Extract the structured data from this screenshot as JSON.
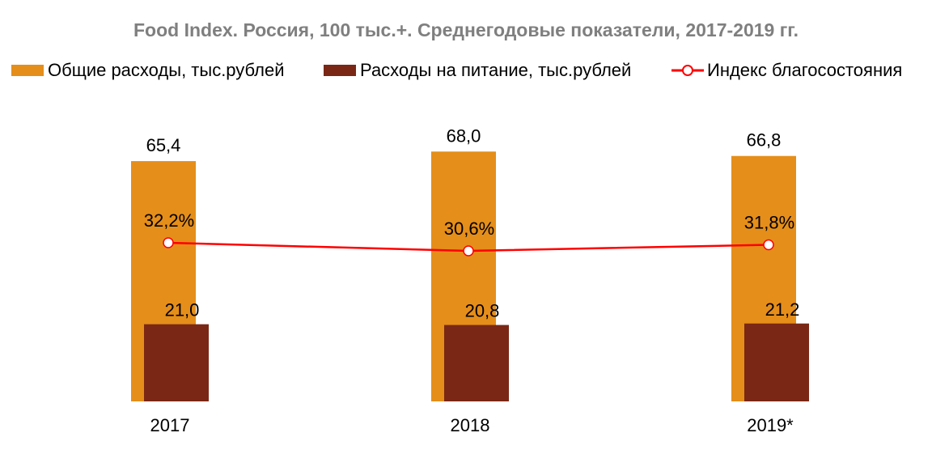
{
  "colors": {
    "total": "#e58e1a",
    "food": "#7a2716",
    "index_line": "#ff0000",
    "title": "#7f7f7f"
  },
  "chart_data": {
    "type": "bar",
    "title": "Food Index. Россия, 100 тыс.+. Среднегодовые показатели, 2017-2019 гг.",
    "categories": [
      "2017",
      "2018",
      "2019*"
    ],
    "series": [
      {
        "name": "Общие расходы, тыс.рублей",
        "type": "bar",
        "values": [
          65.4,
          68.0,
          66.8
        ],
        "labels": [
          "65,4",
          "68,0",
          "66,8"
        ]
      },
      {
        "name": "Расходы на питание, тыс.рублей",
        "type": "bar",
        "values": [
          21.0,
          20.8,
          21.2
        ],
        "labels": [
          "21,0",
          "20,8",
          "21,2"
        ]
      },
      {
        "name": "Индекс благосостояния",
        "type": "line",
        "values": [
          32.2,
          30.6,
          31.8
        ],
        "labels": [
          "32,2%",
          "30,6%",
          "31,8%"
        ]
      }
    ],
    "legend_position": "top",
    "grid": false
  }
}
